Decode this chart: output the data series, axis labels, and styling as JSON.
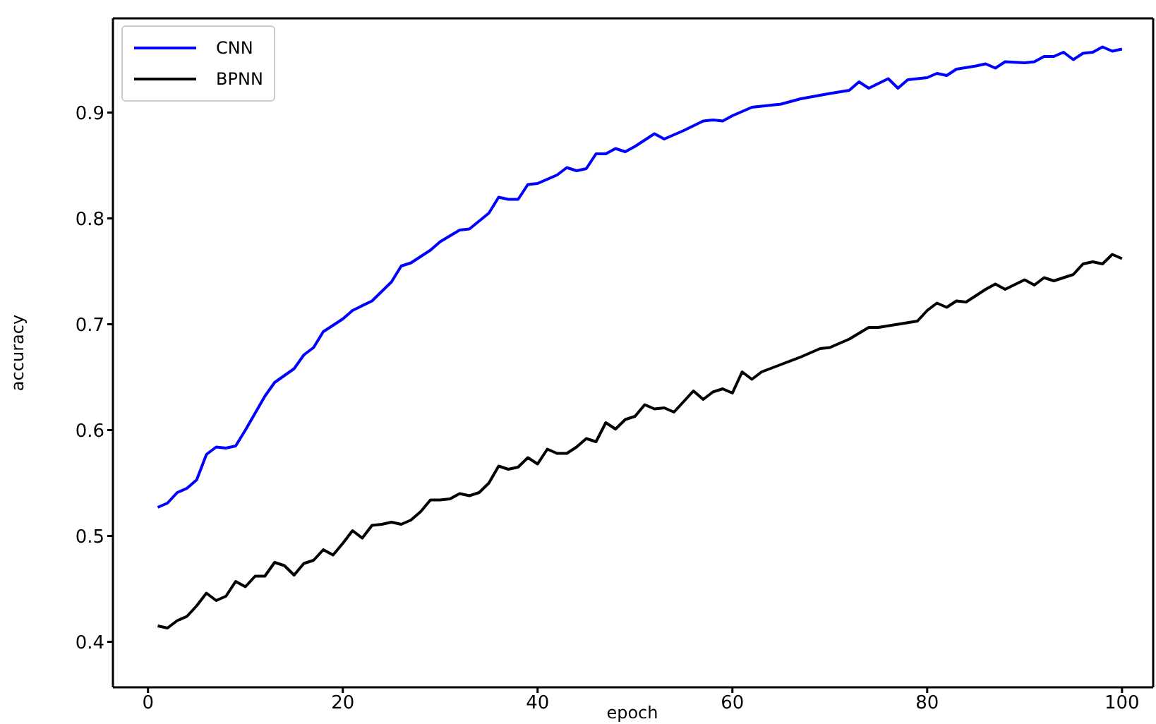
{
  "chart_data": {
    "type": "line",
    "xlabel": "epoch",
    "ylabel": "accuracy",
    "xlim": [
      -3.6,
      103.2
    ],
    "xticks": [
      0,
      20,
      40,
      60,
      80,
      100
    ],
    "ylim": [
      0.357,
      0.989
    ],
    "yticks": [
      0.4,
      0.5,
      0.6,
      0.7,
      0.8,
      0.9
    ],
    "grid": false,
    "legend": "top left",
    "line_style": "solid",
    "marker": "none",
    "series": [
      {
        "name": "CNN",
        "color": "#0000ff",
        "x": [
          1,
          2,
          3,
          4,
          5,
          6,
          7,
          8,
          9,
          10,
          12,
          13,
          15,
          16,
          17,
          18,
          20,
          21,
          23,
          25,
          26,
          27,
          29,
          30,
          32,
          33,
          35,
          36,
          37,
          38,
          39,
          40,
          42,
          43,
          44,
          45,
          46,
          47,
          48,
          49,
          50,
          52,
          53,
          55,
          57,
          58,
          59,
          60,
          62,
          65,
          67,
          70,
          72,
          73,
          74,
          76,
          77,
          78,
          80,
          81,
          82,
          83,
          85,
          86,
          87,
          88,
          90,
          91,
          92,
          93,
          94,
          95,
          96,
          97,
          98,
          99,
          100
        ],
        "values": [
          0.527,
          0.531,
          0.541,
          0.545,
          0.553,
          0.577,
          0.584,
          0.583,
          0.585,
          0.6,
          0.632,
          0.645,
          0.658,
          0.671,
          0.678,
          0.693,
          0.705,
          0.713,
          0.722,
          0.74,
          0.755,
          0.758,
          0.77,
          0.778,
          0.789,
          0.79,
          0.805,
          0.82,
          0.818,
          0.818,
          0.832,
          0.833,
          0.841,
          0.848,
          0.845,
          0.847,
          0.861,
          0.861,
          0.866,
          0.863,
          0.868,
          0.88,
          0.875,
          0.883,
          0.892,
          0.893,
          0.892,
          0.897,
          0.905,
          0.908,
          0.913,
          0.918,
          0.921,
          0.929,
          0.923,
          0.932,
          0.923,
          0.931,
          0.933,
          0.937,
          0.935,
          0.941,
          0.944,
          0.946,
          0.942,
          0.948,
          0.947,
          0.948,
          0.953,
          0.953,
          0.957,
          0.95,
          0.956,
          0.957,
          0.962,
          0.958,
          0.96
        ]
      },
      {
        "name": "BPNN",
        "color": "#000000",
        "x": [
          1,
          2,
          3,
          4,
          5,
          6,
          7,
          8,
          9,
          10,
          11,
          12,
          13,
          14,
          15,
          16,
          17,
          18,
          19,
          20,
          21,
          22,
          23,
          24,
          25,
          26,
          27,
          28,
          29,
          30,
          31,
          32,
          33,
          34,
          35,
          36,
          37,
          38,
          39,
          40,
          41,
          42,
          43,
          44,
          45,
          46,
          47,
          48,
          49,
          50,
          51,
          52,
          53,
          54,
          55,
          56,
          57,
          58,
          59,
          60,
          61,
          62,
          63,
          65,
          67,
          69,
          70,
          72,
          74,
          75,
          77,
          79,
          80,
          81,
          82,
          83,
          84,
          86,
          87,
          88,
          90,
          91,
          92,
          93,
          95,
          96,
          97,
          98,
          99,
          100
        ],
        "values": [
          0.415,
          0.413,
          0.42,
          0.424,
          0.434,
          0.446,
          0.439,
          0.443,
          0.457,
          0.452,
          0.462,
          0.462,
          0.475,
          0.472,
          0.463,
          0.474,
          0.477,
          0.487,
          0.482,
          0.493,
          0.505,
          0.498,
          0.51,
          0.511,
          0.513,
          0.511,
          0.515,
          0.523,
          0.534,
          0.534,
          0.535,
          0.54,
          0.538,
          0.541,
          0.55,
          0.566,
          0.563,
          0.565,
          0.574,
          0.568,
          0.582,
          0.578,
          0.578,
          0.584,
          0.592,
          0.589,
          0.607,
          0.601,
          0.61,
          0.613,
          0.624,
          0.62,
          0.621,
          0.617,
          0.627,
          0.637,
          0.629,
          0.636,
          0.639,
          0.635,
          0.655,
          0.648,
          0.655,
          0.662,
          0.669,
          0.677,
          0.678,
          0.686,
          0.697,
          0.697,
          0.7,
          0.703,
          0.713,
          0.72,
          0.716,
          0.722,
          0.721,
          0.733,
          0.738,
          0.733,
          0.742,
          0.737,
          0.744,
          0.741,
          0.747,
          0.757,
          0.759,
          0.757,
          0.766,
          0.762
        ]
      }
    ]
  }
}
